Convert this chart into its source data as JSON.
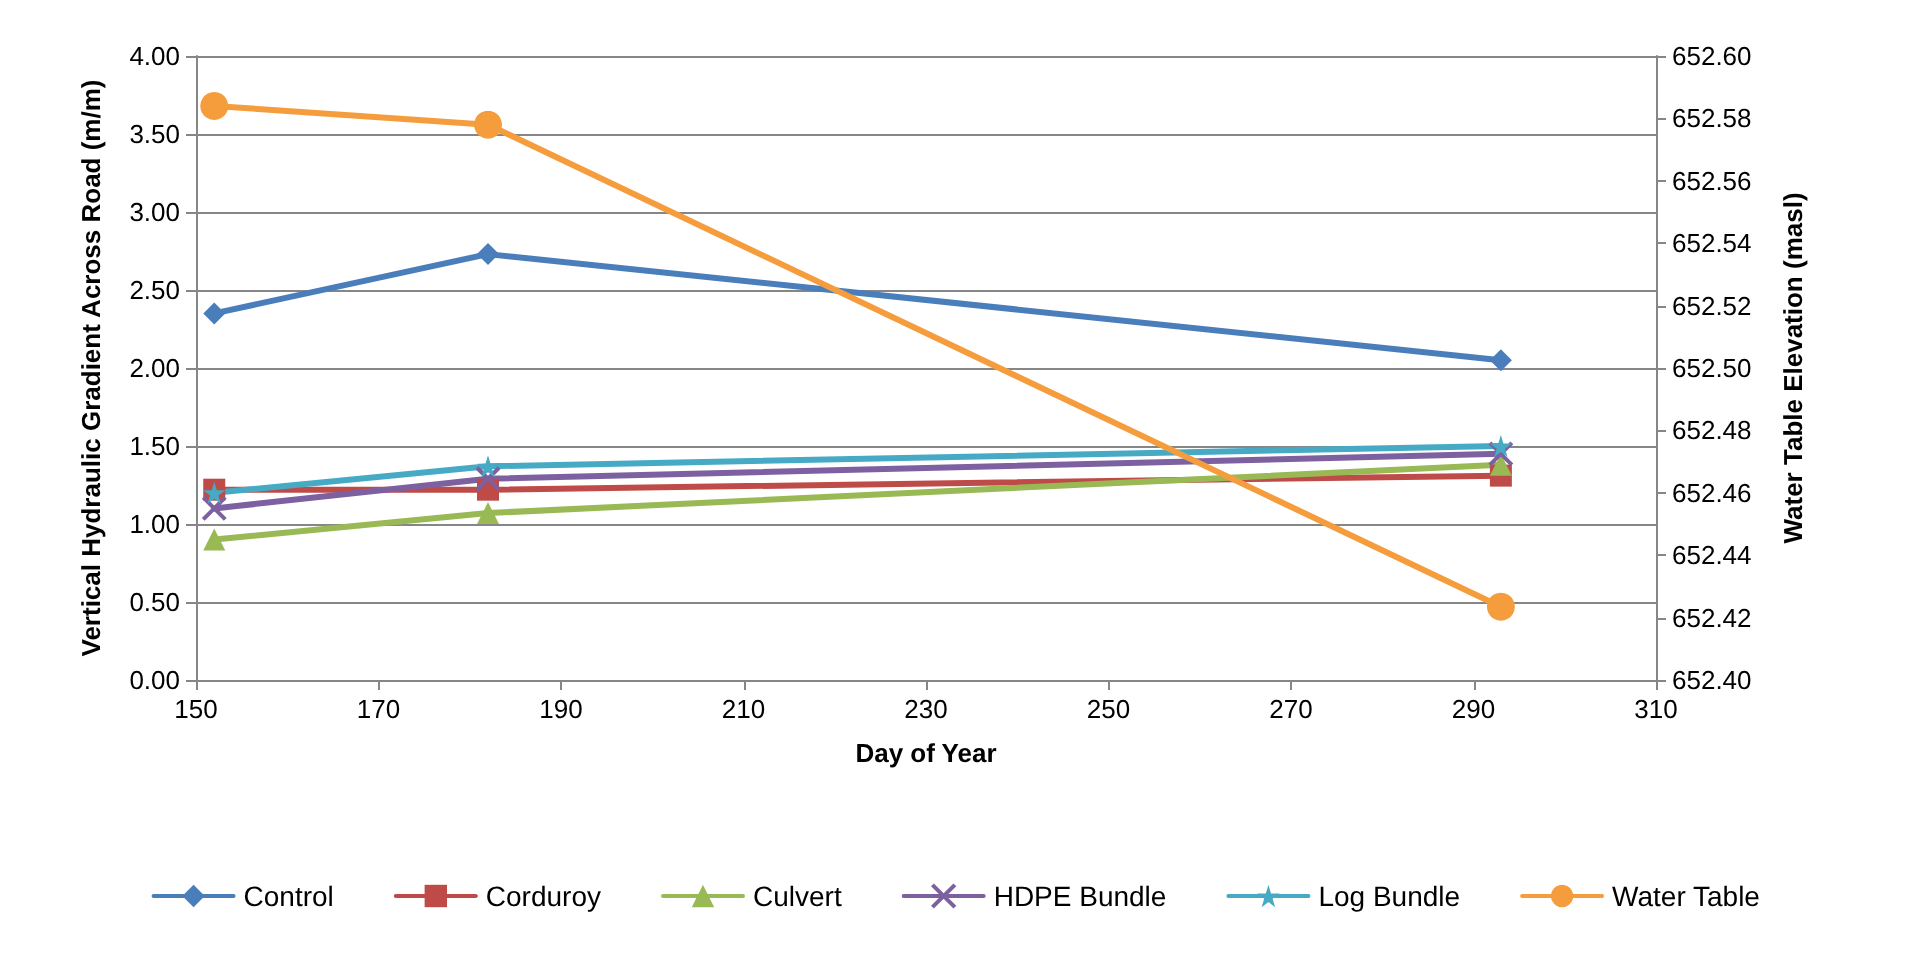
{
  "chart_data": {
    "type": "line",
    "xlabel": "Day of Year",
    "ylabel": "Vertical Hydraulic Gradient Across Road (m/m)",
    "y2label": "Water Table Elevation (masl)",
    "x": [
      152,
      182,
      293
    ],
    "series": [
      {
        "name": "Control",
        "color": "#4a7ebb",
        "marker": "diamond",
        "values": [
          2.35,
          2.73,
          2.05
        ]
      },
      {
        "name": "Corduroy",
        "color": "#be4b48",
        "marker": "square",
        "values": [
          1.22,
          1.22,
          1.31
        ]
      },
      {
        "name": "Culvert",
        "color": "#98b954",
        "marker": "triangle",
        "values": [
          0.9,
          1.07,
          1.38
        ]
      },
      {
        "name": "HDPE Bundle",
        "color": "#7d60a0",
        "marker": "cross",
        "values": [
          1.1,
          1.29,
          1.45
        ]
      },
      {
        "name": "Log Bundle",
        "color": "#46aac5",
        "marker": "star",
        "values": [
          1.2,
          1.37,
          1.5
        ]
      },
      {
        "name": "Water Table",
        "color": "#f59d3d",
        "marker": "circle",
        "axis": "y2",
        "values": [
          652.584,
          652.578,
          652.4235
        ]
      }
    ],
    "xlim": [
      150,
      310
    ],
    "xticks": [
      150,
      170,
      190,
      210,
      230,
      250,
      270,
      290,
      310
    ],
    "ylim": [
      0,
      4
    ],
    "yticks": [
      {
        "value": 0,
        "label": "0.00"
      },
      {
        "value": 0.5,
        "label": "0.50"
      },
      {
        "value": 1,
        "label": "1.00"
      },
      {
        "value": 1.5,
        "label": "1.50"
      },
      {
        "value": 2,
        "label": "2.00"
      },
      {
        "value": 2.5,
        "label": "2.50"
      },
      {
        "value": 3,
        "label": "3.00"
      },
      {
        "value": 3.5,
        "label": "3.50"
      },
      {
        "value": 4,
        "label": "4.00"
      }
    ],
    "y2lim": [
      652.4,
      652.6
    ],
    "y2ticks": [
      {
        "value": 652.4,
        "label": "652.40"
      },
      {
        "value": 652.42,
        "label": "652.42"
      },
      {
        "value": 652.44,
        "label": "652.44"
      },
      {
        "value": 652.46,
        "label": "652.46"
      },
      {
        "value": 652.48,
        "label": "652.48"
      },
      {
        "value": 652.5,
        "label": "652.50"
      },
      {
        "value": 652.52,
        "label": "652.52"
      },
      {
        "value": 652.54,
        "label": "652.54"
      },
      {
        "value": 652.56,
        "label": "652.56"
      },
      {
        "value": 652.58,
        "label": "652.58"
      },
      {
        "value": 652.6,
        "label": "652.60"
      }
    ],
    "grid": "y",
    "legend": "bottom",
    "line_style": "solid"
  }
}
